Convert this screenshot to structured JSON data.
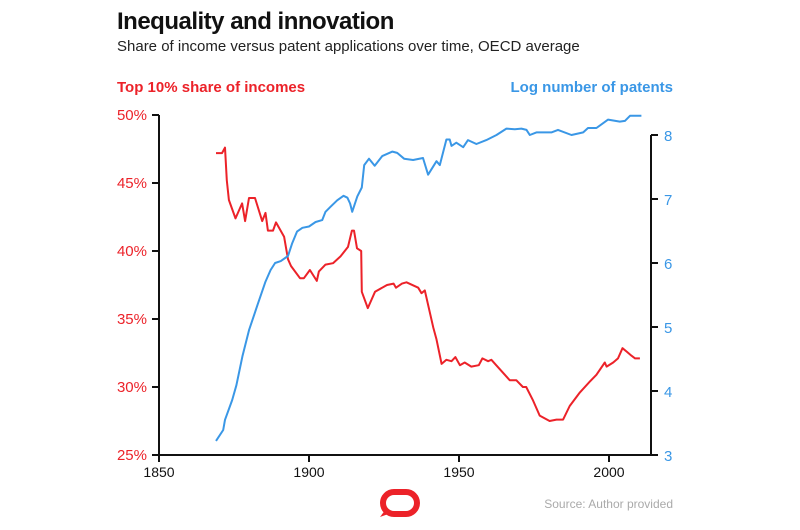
{
  "colors": {
    "income": "#ec2229",
    "patents": "#3a97e6",
    "axis": "#111111"
  },
  "header": {
    "title": "Inequality and innovation",
    "subtitle": "Share of income versus patent applications over time, OECD average"
  },
  "footer": {
    "source": "Source: Author provided",
    "logo": "The Conversation"
  },
  "chart_data": {
    "type": "line",
    "title": "Inequality and innovation",
    "subtitle": "Share of income versus patent applications over time, OECD average",
    "xlabel": "",
    "x_ticks": [
      "1850",
      "1900",
      "1950",
      "2000"
    ],
    "xlim": [
      1850,
      2013
    ],
    "y_left": {
      "label": "Top 10% share of incomes",
      "ticks": [
        "25%",
        "30%",
        "35%",
        "40%",
        "45%",
        "50%"
      ],
      "lim": [
        25,
        50
      ]
    },
    "y_right": {
      "label": "Log number of patents",
      "ticks": [
        "3",
        "4",
        "5",
        "6",
        "7",
        "8"
      ],
      "lim": [
        3,
        8.3
      ]
    },
    "grid": false,
    "series": [
      {
        "name": "Top 10% share of incomes",
        "axis": "left",
        "x": [
          1869,
          1871,
          1872,
          1872.6,
          1873.3,
          1875.5,
          1877.7,
          1878.7,
          1880,
          1882,
          1884.4,
          1885.5,
          1886.3,
          1888,
          1889,
          1891.7,
          1893,
          1894,
          1897,
          1898.3,
          1900.3,
          1902.6,
          1903.3,
          1905.5,
          1908,
          1910.5,
          1913,
          1914.3,
          1915,
          1916,
          1917.4,
          1917.6,
          1919.6,
          1922,
          1926,
          1928.2,
          1929,
          1931,
          1932.5,
          1936.4,
          1937.5,
          1938.6,
          1941.4,
          1942.5,
          1944.2,
          1945.8,
          1947.5,
          1948.8,
          1950.3,
          1951.9,
          1954.1,
          1956.6,
          1957.8,
          1959.7,
          1960.8,
          1962.4,
          1966.9,
          1969.1,
          1971.3,
          1972.4,
          1974.7,
          1976.9,
          1980.2,
          1982.5,
          1984.7,
          1986.9,
          1990.3,
          1993.6,
          1995.8,
          1998.6,
          1999.2,
          2001.4,
          2003,
          2004.5,
          2005.9,
          2007.5,
          2008.7,
          2010.3
        ],
        "values": [
          47.2,
          47.2,
          47.6,
          45.2,
          43.75,
          42.4,
          43.5,
          42.2,
          43.9,
          43.9,
          42.2,
          42.8,
          41.5,
          41.5,
          42.1,
          41.05,
          39.4,
          38.9,
          38.0,
          38.0,
          38.6,
          37.8,
          38.5,
          39.0,
          39.1,
          39.6,
          40.3,
          41.5,
          41.5,
          40.2,
          40.0,
          37.0,
          35.8,
          37.0,
          37.5,
          37.6,
          37.3,
          37.6,
          37.7,
          37.3,
          36.9,
          37.1,
          34.4,
          33.5,
          31.7,
          32.0,
          31.9,
          32.2,
          31.6,
          31.8,
          31.5,
          31.6,
          32.1,
          31.9,
          32.0,
          31.6,
          30.5,
          30.5,
          30.0,
          30.0,
          29.0,
          27.9,
          27.5,
          27.6,
          27.6,
          28.6,
          29.6,
          30.4,
          30.9,
          31.8,
          31.5,
          31.8,
          32.1,
          32.85,
          32.6,
          32.3,
          32.1,
          32.1
        ]
      },
      {
        "name": "Log number of patents",
        "axis": "right",
        "x": [
          1869,
          1871.4,
          1872,
          1874.4,
          1875.8,
          1877.8,
          1880,
          1882.8,
          1885.5,
          1887.2,
          1888.7,
          1890.6,
          1893,
          1894.4,
          1896,
          1897.8,
          1900,
          1902.2,
          1904.4,
          1905.5,
          1907.2,
          1909.4,
          1911.5,
          1912.8,
          1913.7,
          1914.4,
          1916.1,
          1917.6,
          1918.4,
          1920,
          1921.9,
          1924.4,
          1927.8,
          1929.4,
          1931.7,
          1934.7,
          1938,
          1939.7,
          1942.5,
          1943.6,
          1945.8,
          1946.9,
          1947.5,
          1949.1,
          1951.4,
          1953,
          1955.8,
          1959.1,
          1962.5,
          1965.8,
          1968.6,
          1970.8,
          1972.5,
          1973.6,
          1975.8,
          1980.8,
          1983,
          1987.5,
          1991.4,
          1993,
          1995.8,
          1999.7,
          2003.6,
          2005.3,
          2007,
          2010.8
        ],
        "values": [
          3.22,
          3.39,
          3.55,
          3.86,
          4.09,
          4.54,
          4.95,
          5.34,
          5.71,
          5.89,
          6.0,
          6.03,
          6.11,
          6.31,
          6.49,
          6.55,
          6.57,
          6.64,
          6.67,
          6.8,
          6.88,
          6.98,
          7.05,
          7.02,
          6.93,
          6.8,
          7.04,
          7.18,
          7.53,
          7.63,
          7.52,
          7.67,
          7.74,
          7.72,
          7.63,
          7.61,
          7.64,
          7.38,
          7.59,
          7.53,
          7.93,
          7.93,
          7.83,
          7.88,
          7.81,
          7.92,
          7.86,
          7.92,
          8.0,
          8.1,
          8.09,
          8.1,
          8.08,
          8.0,
          8.04,
          8.04,
          8.08,
          8.0,
          8.04,
          8.11,
          8.11,
          8.24,
          8.21,
          8.22,
          8.3,
          8.3
        ]
      }
    ]
  }
}
